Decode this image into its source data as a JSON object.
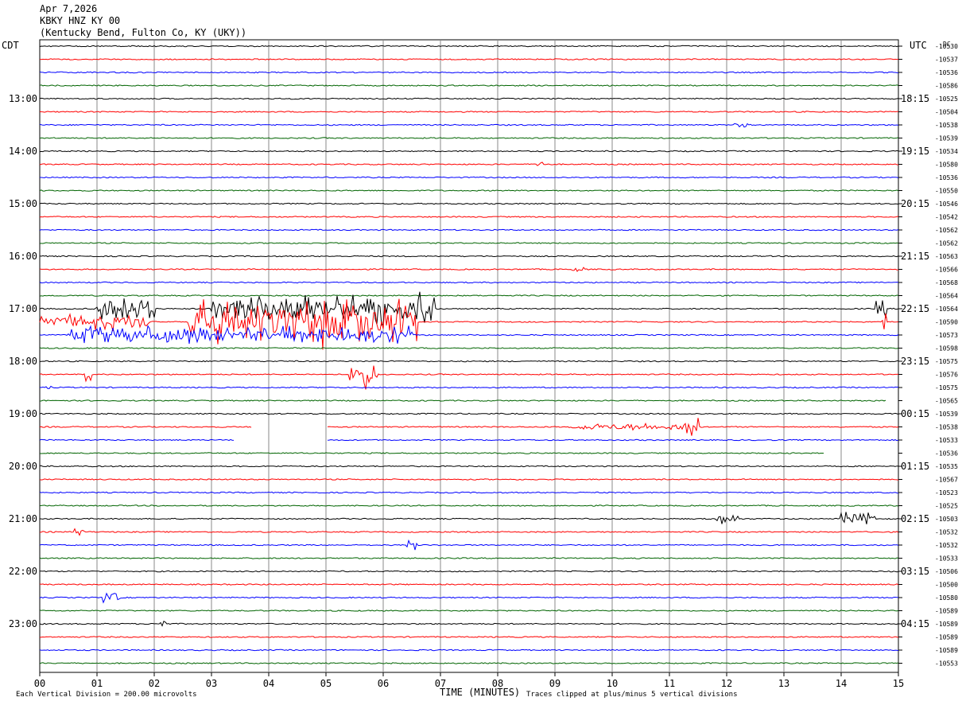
{
  "header": {
    "date": "Apr 7,2026",
    "station": "KBKY HNZ KY 00",
    "location": "(Kentucky Bend, Fulton Co, KY (UKY))"
  },
  "axes": {
    "left_label": "CDT",
    "right_label": "UTC",
    "dc_label": "DC",
    "x_title": "TIME (MINUTES)",
    "x_ticks": [
      "00",
      "01",
      "02",
      "03",
      "04",
      "05",
      "06",
      "07",
      "08",
      "09",
      "10",
      "11",
      "12",
      "13",
      "14",
      "15"
    ]
  },
  "footer": {
    "scale_note": "Each Vertical Division =  200.00 microvolts",
    "clip_note": "Traces clipped at plus/minus 5 vertical divisions"
  },
  "colors": [
    "#000000",
    "#ff0000",
    "#0000ff",
    "#006400"
  ],
  "chart_data": {
    "type": "line",
    "title": "KBKY HNZ KY 00",
    "xlabel": "TIME (MINUTES)",
    "xlim": [
      0,
      15
    ],
    "trace_minutes": 15,
    "rows": 48,
    "left_hour_labels": [
      "13:00",
      "14:00",
      "15:00",
      "16:00",
      "17:00",
      "18:00",
      "19:00",
      "20:00",
      "21:00",
      "22:00",
      "23:00"
    ],
    "right_hour_labels": [
      "18:15",
      "19:15",
      "20:15",
      "21:15",
      "22:15",
      "23:15",
      "00:15",
      "01:15",
      "02:15",
      "03:15",
      "04:15"
    ],
    "dc_offsets": [
      "-10530",
      "-10537",
      "-10536",
      "-10586",
      "-10525",
      "-10504",
      "-10538",
      "-10539",
      "-10534",
      "-10580",
      "-10536",
      "-10550",
      "-10546",
      "-10542",
      "-10562",
      "-10562",
      "-10563",
      "-10566",
      "-10568",
      "-10564",
      "-10564",
      "-10590",
      "-10573",
      "-10598",
      "-10575",
      "-10576",
      "-10575",
      "-10565",
      "-10539",
      "-10538",
      "-10533",
      "-10536",
      "-10535",
      "-10567",
      "-10523",
      "-10525",
      "-10503",
      "-10532",
      "-10532",
      "-10533",
      "-10506",
      "-10500",
      "-10580",
      "-10589",
      "-10589",
      "-10589",
      "-10589",
      "-10553"
    ]
  }
}
